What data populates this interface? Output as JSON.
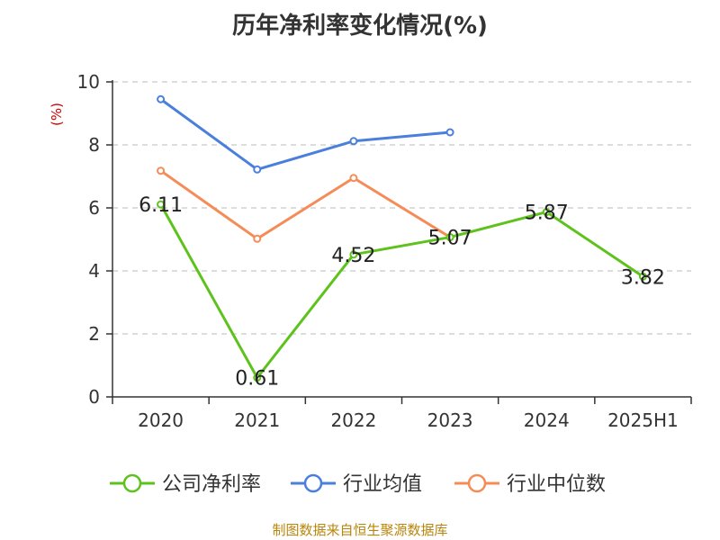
{
  "colors": {
    "company": "#5ec21c",
    "industry_avg": "#4a7fdc",
    "industry_median": "#f58c58",
    "ylabel": "#cc0000",
    "source": "#b8860b"
  },
  "source_note": "制图数据来自恒生聚源数据库",
  "chart_data": {
    "type": "line",
    "title": "历年净利率变化情况(%)",
    "ylabel": "(%)",
    "xlabel": "",
    "categories": [
      "2020",
      "2021",
      "2022",
      "2023",
      "2024",
      "2025H1"
    ],
    "ylim": [
      0,
      10
    ],
    "yticks": [
      0,
      2,
      4,
      6,
      8,
      10
    ],
    "grid": true,
    "legend_position": "bottom",
    "series": [
      {
        "name": "公司净利率",
        "values": [
          6.11,
          0.61,
          4.52,
          5.07,
          5.87,
          3.82
        ],
        "labels": [
          "6.11",
          "0.61",
          "4.52",
          "5.07",
          "5.87",
          "3.82"
        ],
        "color_key": "company"
      },
      {
        "name": "行业均值",
        "values": [
          9.45,
          7.22,
          8.12,
          8.4,
          null,
          null
        ],
        "color_key": "industry_avg"
      },
      {
        "name": "行业中位数",
        "values": [
          7.18,
          5.02,
          6.95,
          5.07,
          null,
          null
        ],
        "color_key": "industry_median"
      }
    ]
  }
}
